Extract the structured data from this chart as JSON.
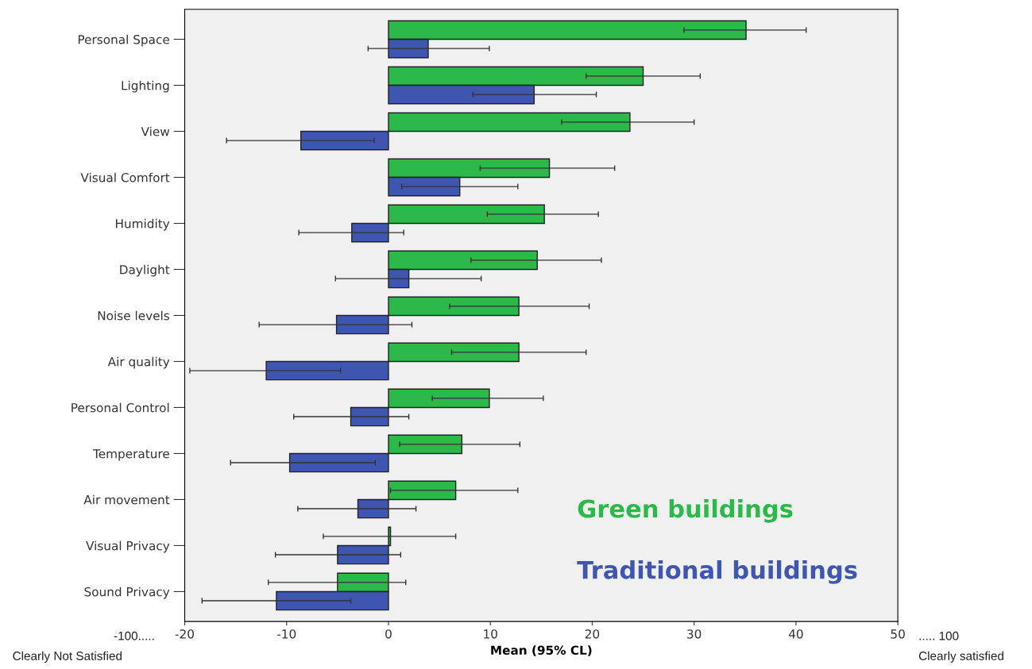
{
  "chart_data": {
    "type": "bar",
    "orientation": "horizontal",
    "xlabel": "Mean (95% CL)",
    "categories": [
      "Personal Space",
      "Lighting",
      "View",
      "Visual Comfort",
      "Humidity",
      "Daylight",
      "Noise levels",
      "Air quality",
      "Personal Control",
      "Temperature",
      "Air movement",
      "Visual Privacy",
      "Sound Privacy"
    ],
    "series": [
      {
        "name": "Green buildings",
        "color": "#2db84a",
        "values": [
          35.1,
          25,
          23.7,
          15.8,
          15.3,
          14.6,
          12.8,
          12.8,
          9.9,
          7.2,
          6.6,
          0.2,
          -5
        ],
        "errors": [
          [
            29,
            41
          ],
          [
            19.4,
            30.6
          ],
          [
            17,
            30
          ],
          [
            9,
            22.2
          ],
          [
            9.7,
            20.6
          ],
          [
            8.1,
            20.9
          ],
          [
            6,
            19.7
          ],
          [
            6.2,
            19.4
          ],
          [
            4.3,
            15.2
          ],
          [
            1.1,
            12.9
          ],
          [
            0.2,
            12.7
          ],
          [
            -6.4,
            6.6
          ],
          [
            -11.8,
            1.7
          ]
        ]
      },
      {
        "name": "Traditional buildings",
        "color": "#3f56b0",
        "values": [
          3.9,
          14.3,
          -8.6,
          7,
          -3.6,
          2,
          -5.1,
          -12,
          -3.7,
          -9.7,
          -3,
          -5,
          -11
        ],
        "errors": [
          [
            -2,
            9.9
          ],
          [
            8.3,
            20.4
          ],
          [
            -15.9,
            -1.4
          ],
          [
            1.3,
            12.7
          ],
          [
            -8.8,
            1.5
          ],
          [
            -5.2,
            9.1
          ],
          [
            -12.7,
            2.3
          ],
          [
            -19.5,
            -4.7
          ],
          [
            -9.3,
            2
          ],
          [
            -15.5,
            -1.3
          ],
          [
            -8.9,
            2.7
          ],
          [
            -11.1,
            1.2
          ],
          [
            -18.3,
            -3.7
          ]
        ]
      }
    ],
    "xlim": [
      -20,
      50
    ],
    "xticks": [
      -20,
      -10,
      0,
      10,
      20,
      30,
      40,
      50
    ],
    "annotations": [
      "-100.....",
      "Clearly Not Satisfied",
      "..... 100",
      "Clearly satisfied"
    ]
  }
}
